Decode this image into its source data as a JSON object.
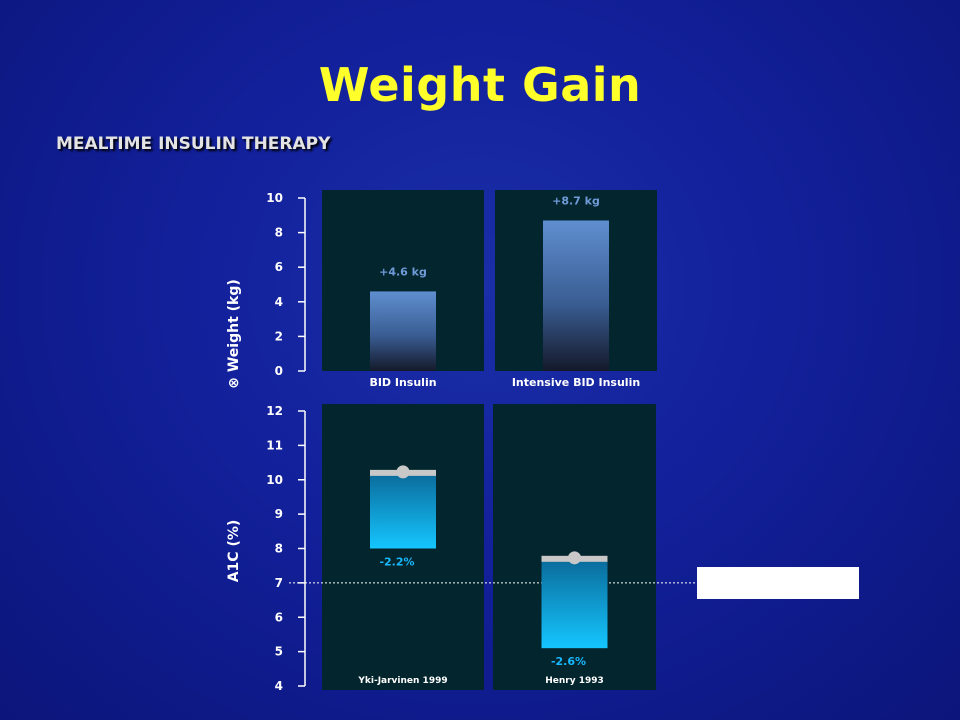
{
  "slide": {
    "title": "Weight Gain",
    "subtitle": "MEALTIME INSULIN THERAPY"
  },
  "colors": {
    "background": "#12209a",
    "title": "#ffff2a",
    "panel": "#03252d",
    "weight_bar_top": "#5f8fd0",
    "weight_bar_bottom": "#14192a",
    "a1c_bar_top": "#0a6a9a",
    "a1c_bar_bottom": "#15c6ff",
    "weight_label": "#6f9bd8",
    "a1c_label": "#18b8ff",
    "target_line": "#ffffff"
  },
  "chart_data": [
    {
      "type": "bar",
      "ylabel": "Weight (kg)",
      "ylabel_symbol": "⊗",
      "ylim": [
        0,
        10
      ],
      "yticks": [
        0,
        2,
        4,
        6,
        8,
        10
      ],
      "categories": [
        "BID Insulin",
        "Intensive BID Insulin"
      ],
      "values": [
        4.6,
        8.7
      ],
      "value_labels": [
        "+4.6 kg",
        "+8.7 kg"
      ]
    },
    {
      "type": "bar",
      "ylabel": "A1C (%)",
      "ylim": [
        4,
        12
      ],
      "yticks": [
        4,
        5,
        6,
        7,
        8,
        9,
        10,
        11,
        12
      ],
      "categories": [
        "Yki-Jarvinen 1999",
        "Henry 1993"
      ],
      "bars": [
        {
          "start": 10.2,
          "end": 8.0,
          "change_label": "-2.2%"
        },
        {
          "start": 7.7,
          "end": 5.1,
          "change_label": "-2.6%"
        }
      ],
      "reference_line": 7
    }
  ]
}
